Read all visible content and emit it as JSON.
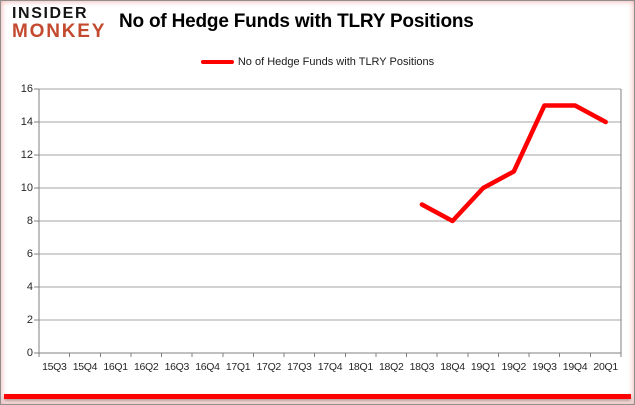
{
  "logo": {
    "line1": "INSIDER",
    "line2": "MONKEY"
  },
  "title": "No of Hedge Funds with TLRY Positions",
  "legend": {
    "label": "No of Hedge Funds with TLRY Positions"
  },
  "colors": {
    "series": "#fe0000",
    "logo_accent": "#c44a2f",
    "grid": "#a6a6a6",
    "axis": "#808080",
    "bottom_bar": "#fe0000"
  },
  "chart_data": {
    "type": "line",
    "title": "No of Hedge Funds with TLRY Positions",
    "categories": [
      "15Q3",
      "15Q4",
      "16Q1",
      "16Q2",
      "16Q3",
      "16Q4",
      "17Q1",
      "17Q2",
      "17Q3",
      "17Q4",
      "18Q1",
      "18Q2",
      "18Q3",
      "18Q4",
      "19Q1",
      "19Q2",
      "19Q3",
      "19Q4",
      "20Q1"
    ],
    "series": [
      {
        "name": "No of Hedge Funds with TLRY Positions",
        "color": "#fe0000",
        "values": [
          null,
          null,
          null,
          null,
          null,
          null,
          null,
          null,
          null,
          null,
          null,
          null,
          9,
          8,
          10,
          11,
          15,
          15,
          14
        ]
      }
    ],
    "xlabel": "",
    "ylabel": "",
    "ylim": [
      0,
      16
    ],
    "yticks": [
      0,
      2,
      4,
      6,
      8,
      10,
      12,
      14,
      16
    ],
    "grid": true,
    "legend_position": "top-center"
  }
}
